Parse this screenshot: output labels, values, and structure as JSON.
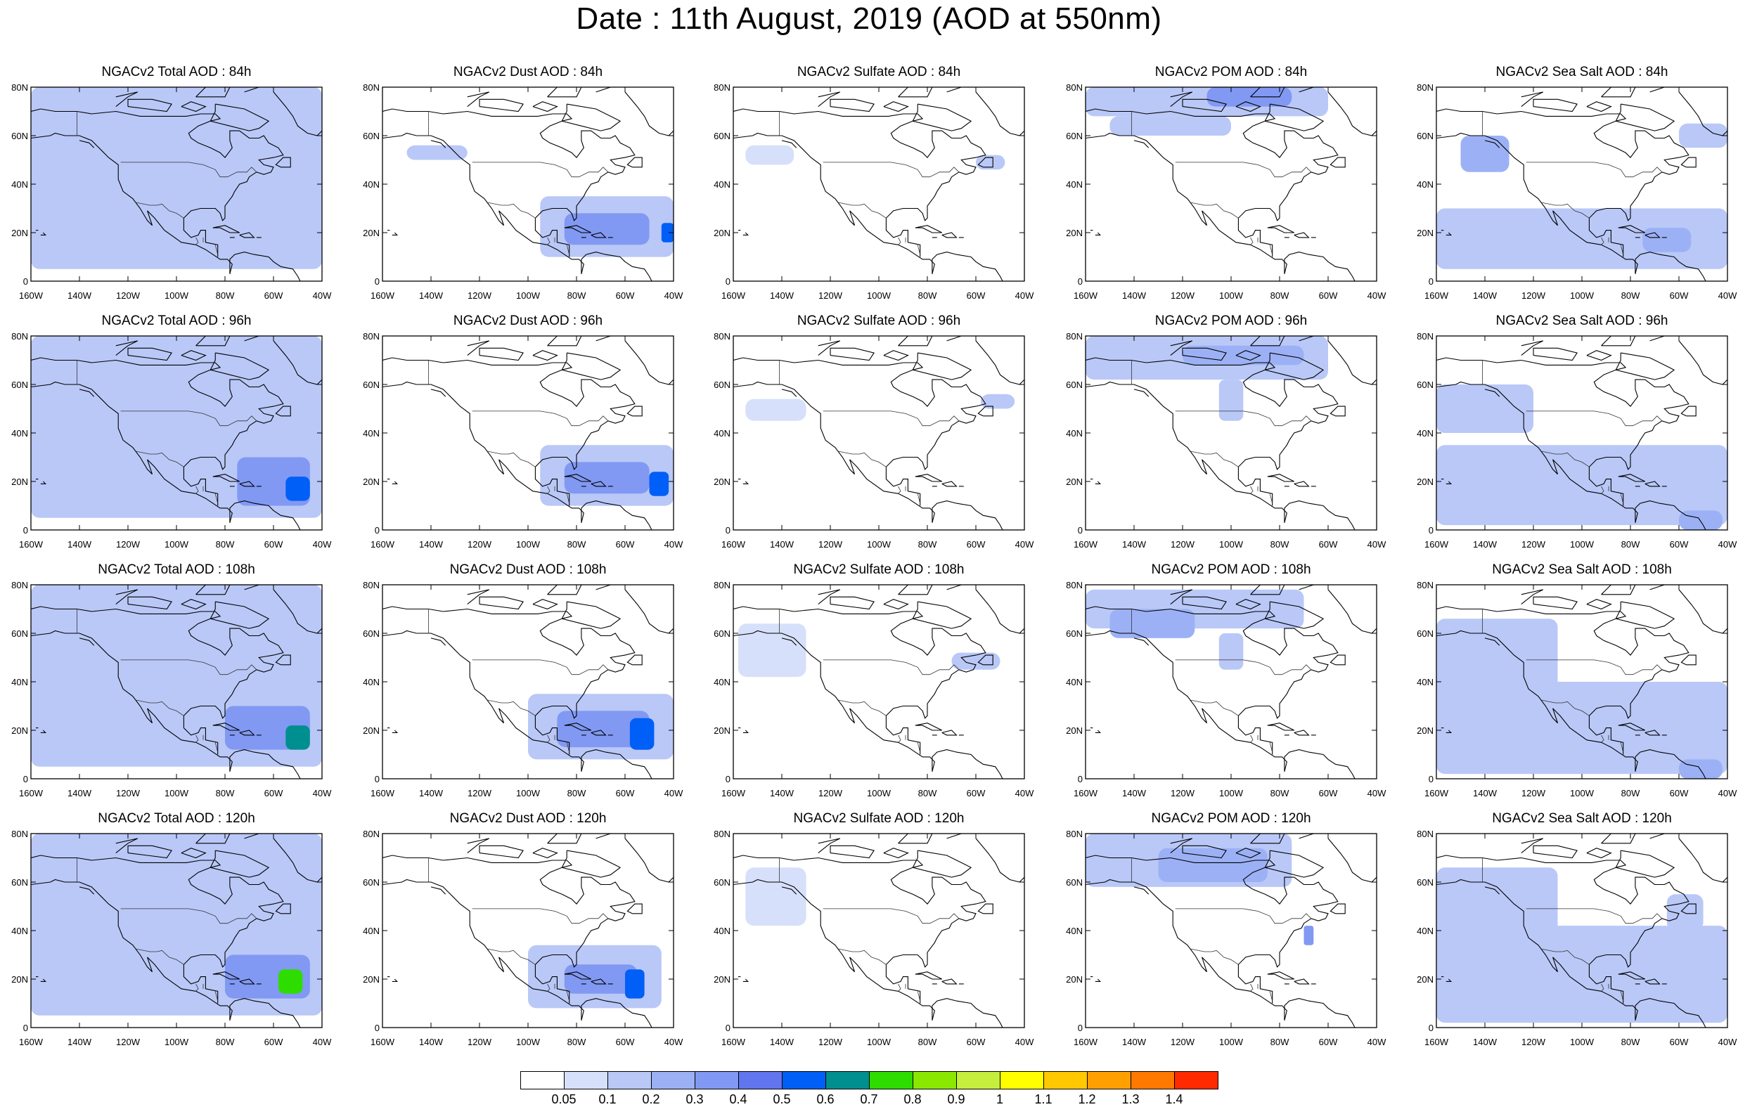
{
  "title": "Date : 11th August, 2019 (AOD at 550nm)",
  "map": {
    "lon_range": [
      -160,
      -40
    ],
    "lat_range": [
      0,
      80
    ],
    "lon_ticks": [
      "160W",
      "140W",
      "120W",
      "100W",
      "80W",
      "60W",
      "40W"
    ],
    "lat_ticks": [
      "0",
      "20N",
      "40N",
      "60N",
      "80N"
    ]
  },
  "rows": [
    "84h",
    "96h",
    "108h",
    "120h"
  ],
  "columns": [
    {
      "species": "Total",
      "titles": [
        "NGACv2 Total AOD : 84h",
        "NGACv2 Total AOD : 96h",
        "NGACv2 Total AOD : 108h",
        "NGACv2 Total AOD : 120h"
      ]
    },
    {
      "species": "Dust",
      "titles": [
        "NGACv2 Dust AOD : 84h",
        "NGACv2 Dust AOD : 96h",
        "NGACv2 Dust AOD : 108h",
        "NGACv2 Dust AOD : 120h"
      ]
    },
    {
      "species": "Sulfate",
      "titles": [
        "NGACv2 Sulfate AOD : 84h",
        "NGACv2 Sulfate AOD : 96h",
        "NGACv2 Sulfate AOD : 108h",
        "NGACv2 Sulfate AOD : 120h"
      ]
    },
    {
      "species": "POM",
      "titles": [
        "NGACv2 POM AOD : 84h",
        "NGACv2 POM AOD : 96h",
        "NGACv2 POM AOD : 108h",
        "NGACv2 POM AOD : 120h"
      ]
    },
    {
      "species": "Sea Salt",
      "titles": [
        "NGACv2 Sea Salt AOD : 84h",
        "NGACv2 Sea Salt AOD : 96h",
        "NGACv2 Sea Salt  AOD : 108h",
        "NGACv2 Sea Salt  AOD : 120h"
      ]
    }
  ],
  "colorbar": {
    "labels": [
      "0.05",
      "0.1",
      "0.2",
      "0.3",
      "0.4",
      "0.5",
      "0.6",
      "0.7",
      "0.8",
      "0.9",
      "1",
      "1.1",
      "1.2",
      "1.3",
      "1.4"
    ],
    "colors": [
      "#ffffff",
      "#d7e0fa",
      "#b9c8f7",
      "#9cb1f5",
      "#8199f2",
      "#6176ee",
      "#005ff6",
      "#008f8f",
      "#2fdc00",
      "#8ae800",
      "#c6ee3c",
      "#ffff00",
      "#ffc800",
      "#ffa000",
      "#ff7800",
      "#ff2a00"
    ]
  },
  "aod_blobs": {
    "Total": [
      [
        [
          -160,
          5,
          -40,
          80,
          0.15
        ]
      ],
      [
        [
          -160,
          5,
          -40,
          80,
          0.15
        ],
        [
          -75,
          10,
          -45,
          30,
          0.35
        ],
        [
          -55,
          12,
          -45,
          22,
          0.5
        ]
      ],
      [
        [
          -160,
          5,
          -40,
          80,
          0.18
        ],
        [
          -80,
          12,
          -45,
          30,
          0.35
        ],
        [
          -55,
          12,
          -45,
          22,
          0.6
        ]
      ],
      [
        [
          -160,
          5,
          -40,
          80,
          0.18
        ],
        [
          -80,
          12,
          -45,
          30,
          0.35
        ],
        [
          -58,
          14,
          -48,
          24,
          0.7
        ]
      ]
    ],
    "Dust": [
      [
        [
          -95,
          10,
          -40,
          35,
          0.15
        ],
        [
          -85,
          15,
          -50,
          28,
          0.3
        ],
        [
          -45,
          16,
          -40,
          24,
          0.5
        ],
        [
          -150,
          50,
          -125,
          56,
          0.12
        ]
      ],
      [
        [
          -95,
          10,
          -40,
          35,
          0.15
        ],
        [
          -85,
          15,
          -50,
          28,
          0.3
        ],
        [
          -50,
          14,
          -42,
          24,
          0.5
        ]
      ],
      [
        [
          -100,
          8,
          -40,
          35,
          0.15
        ],
        [
          -88,
          13,
          -50,
          28,
          0.3
        ],
        [
          -58,
          12,
          -48,
          25,
          0.5
        ]
      ],
      [
        [
          -100,
          8,
          -45,
          34,
          0.15
        ],
        [
          -85,
          14,
          -55,
          26,
          0.3
        ],
        [
          -60,
          12,
          -52,
          24,
          0.5
        ]
      ]
    ],
    "Sulfate": [
      [
        [
          -155,
          48,
          -135,
          56,
          0.08
        ],
        [
          -60,
          46,
          -48,
          52,
          0.1
        ]
      ],
      [
        [
          -155,
          45,
          -130,
          54,
          0.08
        ],
        [
          -58,
          50,
          -44,
          56,
          0.1
        ]
      ],
      [
        [
          -158,
          42,
          -130,
          64,
          0.08
        ],
        [
          -70,
          45,
          -50,
          52,
          0.1
        ]
      ],
      [
        [
          -155,
          42,
          -130,
          66,
          0.08
        ]
      ]
    ],
    "POM": [
      [
        [
          -160,
          68,
          -60,
          80,
          0.15
        ],
        [
          -110,
          72,
          -75,
          80,
          0.3
        ],
        [
          -150,
          60,
          -100,
          68,
          0.12
        ]
      ],
      [
        [
          -160,
          62,
          -60,
          80,
          0.12
        ],
        [
          -120,
          68,
          -70,
          76,
          0.2
        ],
        [
          -105,
          45,
          -95,
          62,
          0.12
        ]
      ],
      [
        [
          -160,
          62,
          -70,
          78,
          0.12
        ],
        [
          -150,
          58,
          -115,
          70,
          0.2
        ],
        [
          -105,
          45,
          -95,
          60,
          0.12
        ]
      ],
      [
        [
          -160,
          58,
          -75,
          80,
          0.12
        ],
        [
          -130,
          60,
          -85,
          74,
          0.2
        ],
        [
          -70,
          34,
          -66,
          42,
          0.3
        ]
      ]
    ],
    "Sea Salt": [
      [
        [
          -150,
          45,
          -130,
          60,
          0.2
        ],
        [
          -160,
          5,
          -40,
          30,
          0.1
        ],
        [
          -75,
          12,
          -55,
          22,
          0.2
        ],
        [
          -60,
          55,
          -40,
          65,
          0.1
        ]
      ],
      [
        [
          -160,
          40,
          -120,
          60,
          0.12
        ],
        [
          -160,
          2,
          -40,
          35,
          0.1
        ],
        [
          -75,
          10,
          -50,
          25,
          0.15
        ],
        [
          -60,
          0,
          -42,
          8,
          0.25
        ]
      ],
      [
        [
          -160,
          30,
          -110,
          66,
          0.12
        ],
        [
          -160,
          2,
          -40,
          40,
          0.1
        ],
        [
          -60,
          0,
          -42,
          8,
          0.25
        ]
      ],
      [
        [
          -160,
          30,
          -110,
          66,
          0.12
        ],
        [
          -160,
          2,
          -40,
          42,
          0.1
        ],
        [
          -65,
          40,
          -50,
          55,
          0.15
        ]
      ]
    ]
  }
}
